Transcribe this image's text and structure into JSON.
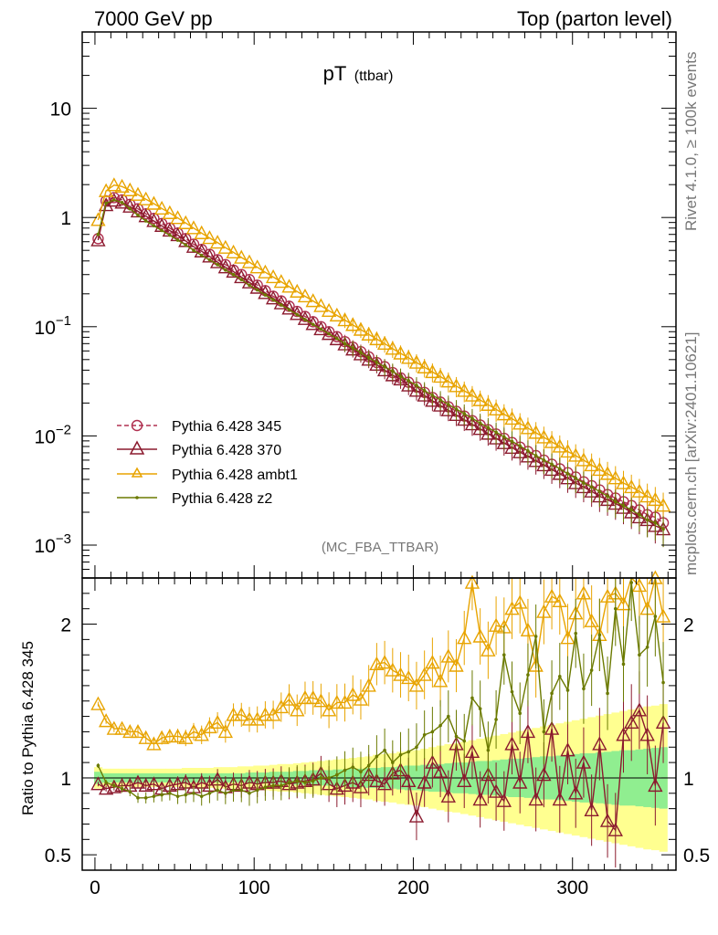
{
  "header": {
    "energy_label": "7000 GeV pp",
    "process_label": "Top (parton level)",
    "side_top": "Rivet 4.1.0, ≥ 100k events",
    "side_bottom": "mcplots.cern.ch [arXiv:2401.10621]"
  },
  "chart_data": {
    "type": "line",
    "title_main": "pT",
    "title_sub": "(ttbar)",
    "analysis_label": "(MC_FBA_TTBAR)",
    "xlim": [
      -8,
      365
    ],
    "x_ticks": [
      "0",
      "100",
      "200",
      "300"
    ],
    "main_panel": {
      "yscale": "log",
      "ylim": [
        0.0005,
        50
      ],
      "y_ticks": [
        {
          "base": "10",
          "exp": "−3"
        },
        {
          "base": "10",
          "exp": "−2"
        },
        {
          "base": "10",
          "exp": "−1"
        },
        {
          "base": "1",
          "exp": ""
        },
        {
          "base": "10",
          "exp": ""
        }
      ],
      "x": [
        2,
        7,
        12,
        17,
        22,
        27,
        32,
        37,
        42,
        47,
        52,
        57,
        62,
        67,
        72,
        77,
        82,
        87,
        92,
        97,
        102,
        107,
        112,
        117,
        122,
        127,
        132,
        137,
        142,
        147,
        152,
        157,
        162,
        167,
        172,
        177,
        182,
        187,
        192,
        197,
        202,
        207,
        212,
        217,
        222,
        227,
        232,
        237,
        242,
        247,
        252,
        257,
        262,
        267,
        272,
        277,
        282,
        287,
        292,
        297,
        302,
        307,
        312,
        317,
        322,
        327,
        332,
        337,
        342,
        347,
        352,
        357
      ],
      "series": [
        {
          "name": "Pythia 6.428 345",
          "color": "#b03050",
          "marker": "circle",
          "dashed": true,
          "values": [
            0.64,
            1.42,
            1.52,
            1.45,
            1.32,
            1.2,
            1.08,
            0.98,
            0.88,
            0.8,
            0.72,
            0.64,
            0.57,
            0.51,
            0.46,
            0.41,
            0.37,
            0.33,
            0.3,
            0.27,
            0.24,
            0.214,
            0.19,
            0.172,
            0.154,
            0.138,
            0.124,
            0.111,
            0.1,
            0.09,
            0.081,
            0.073,
            0.065,
            0.059,
            0.053,
            0.047,
            0.043,
            0.038,
            0.034,
            0.031,
            0.028,
            0.025,
            0.0225,
            0.0204,
            0.0185,
            0.0168,
            0.0152,
            0.0138,
            0.0126,
            0.0114,
            0.0104,
            0.0095,
            0.0087,
            0.0079,
            0.0072,
            0.0066,
            0.006,
            0.0055,
            0.005,
            0.0046,
            0.0042,
            0.0038,
            0.0035,
            0.0032,
            0.0029,
            0.0027,
            0.0025,
            0.0023,
            0.0021,
            0.0019,
            0.0018,
            0.0016
          ]
        },
        {
          "name": "Pythia 6.428 370",
          "color": "#8b1a2e",
          "marker": "triangle",
          "dashed": false,
          "values": [
            0.62,
            1.3,
            1.43,
            1.37,
            1.26,
            1.14,
            1.03,
            0.93,
            0.84,
            0.76,
            0.69,
            0.61,
            0.54,
            0.49,
            0.44,
            0.39,
            0.35,
            0.32,
            0.285,
            0.255,
            0.228,
            0.204,
            0.182,
            0.164,
            0.147,
            0.131,
            0.118,
            0.106,
            0.095,
            0.086,
            0.077,
            0.069,
            0.062,
            0.056,
            0.05,
            0.045,
            0.04,
            0.036,
            0.033,
            0.029,
            0.026,
            0.0235,
            0.021,
            0.019,
            0.0172,
            0.0156,
            0.0141,
            0.0128,
            0.0116,
            0.0105,
            0.0095,
            0.0086,
            0.0078,
            0.0071,
            0.0065,
            0.0059,
            0.0054,
            0.0049,
            0.0045,
            0.0041,
            0.0037,
            0.0034,
            0.0031,
            0.0028,
            0.0026,
            0.0024,
            0.0022,
            0.002,
            0.0018,
            0.0017,
            0.0015,
            0.0014
          ]
        },
        {
          "name": "Pythia 6.428 ambt1",
          "color": "#e8a400",
          "marker": "triangle",
          "dashed": false,
          "values": [
            0.95,
            1.75,
            1.98,
            1.92,
            1.78,
            1.62,
            1.47,
            1.34,
            1.21,
            1.1,
            0.99,
            0.89,
            0.8,
            0.72,
            0.65,
            0.59,
            0.53,
            0.48,
            0.43,
            0.39,
            0.35,
            0.315,
            0.285,
            0.258,
            0.233,
            0.21,
            0.19,
            0.172,
            0.155,
            0.14,
            0.127,
            0.115,
            0.104,
            0.094,
            0.085,
            0.077,
            0.07,
            0.063,
            0.057,
            0.052,
            0.047,
            0.0425,
            0.0385,
            0.0349,
            0.0316,
            0.0286,
            0.0259,
            0.0235,
            0.0213,
            0.0193,
            0.0175,
            0.0158,
            0.0144,
            0.013,
            0.0118,
            0.0107,
            0.0097,
            0.0088,
            0.008,
            0.0072,
            0.0066,
            0.006,
            0.0054,
            0.0049,
            0.0045,
            0.0041,
            0.0037,
            0.0034,
            0.0031,
            0.0028,
            0.0026,
            0.0023
          ]
        },
        {
          "name": "Pythia 6.428 z2",
          "color": "#6b7a00",
          "marker": "dot",
          "dashed": false,
          "values": [
            0.7,
            1.35,
            1.45,
            1.37,
            1.2,
            1.05,
            0.93,
            0.84,
            0.76,
            0.69,
            0.62,
            0.56,
            0.5,
            0.45,
            0.41,
            0.37,
            0.33,
            0.3,
            0.27,
            0.24,
            0.217,
            0.195,
            0.176,
            0.158,
            0.143,
            0.129,
            0.116,
            0.105,
            0.095,
            0.086,
            0.078,
            0.07,
            0.064,
            0.058,
            0.052,
            0.047,
            0.043,
            0.039,
            0.035,
            0.032,
            0.029,
            0.026,
            0.0236,
            0.0214,
            0.0194,
            0.0176,
            0.016,
            0.0145,
            0.0131,
            0.0119,
            0.0108,
            0.0098,
            0.0089,
            0.0081,
            0.0073,
            0.0066,
            0.006,
            0.0055,
            0.005,
            0.0045,
            0.0041,
            0.0037,
            0.0034,
            0.0031,
            0.0028,
            0.0025,
            0.0023,
            0.0021,
            0.0019,
            0.0017,
            0.0016,
            0.0014
          ]
        }
      ]
    },
    "ratio_panel": {
      "ylabel": "Ratio to Pythia 6.428 345",
      "ylim": [
        0.4,
        2.3
      ],
      "y_ticks": [
        "0.5",
        "1",
        "2"
      ],
      "band_inner": [
        0.04,
        0.03,
        0.03,
        0.03,
        0.03,
        0.03,
        0.03,
        0.03,
        0.03,
        0.03,
        0.03,
        0.03,
        0.03,
        0.03,
        0.03,
        0.03,
        0.03,
        0.03,
        0.03,
        0.035,
        0.035,
        0.035,
        0.04,
        0.04,
        0.04,
        0.045,
        0.045,
        0.05,
        0.05,
        0.05,
        0.055,
        0.055,
        0.06,
        0.06,
        0.065,
        0.065,
        0.07,
        0.07,
        0.075,
        0.08,
        0.08,
        0.085,
        0.09,
        0.09,
        0.095,
        0.1,
        0.1,
        0.105,
        0.11,
        0.11,
        0.115,
        0.12,
        0.125,
        0.125,
        0.13,
        0.135,
        0.14,
        0.14,
        0.145,
        0.15,
        0.155,
        0.16,
        0.16,
        0.165,
        0.17,
        0.175,
        0.18,
        0.18,
        0.185,
        0.19,
        0.195,
        0.2
      ],
      "band_outer": [
        0.07,
        0.06,
        0.06,
        0.06,
        0.06,
        0.06,
        0.06,
        0.06,
        0.06,
        0.06,
        0.06,
        0.065,
        0.065,
        0.065,
        0.065,
        0.07,
        0.07,
        0.07,
        0.075,
        0.075,
        0.08,
        0.08,
        0.085,
        0.09,
        0.09,
        0.095,
        0.1,
        0.105,
        0.11,
        0.115,
        0.12,
        0.125,
        0.13,
        0.135,
        0.14,
        0.15,
        0.155,
        0.16,
        0.17,
        0.175,
        0.18,
        0.19,
        0.2,
        0.21,
        0.22,
        0.225,
        0.235,
        0.245,
        0.255,
        0.265,
        0.275,
        0.285,
        0.295,
        0.305,
        0.315,
        0.325,
        0.335,
        0.345,
        0.355,
        0.365,
        0.375,
        0.385,
        0.395,
        0.405,
        0.415,
        0.425,
        0.435,
        0.445,
        0.455,
        0.465,
        0.47,
        0.48
      ],
      "series": [
        {
          "name": "Pythia 6.428 370",
          "color": "#8b1a2e",
          "marker": "triangle",
          "values": [
            0.96,
            0.93,
            0.94,
            0.95,
            0.95,
            0.97,
            0.95,
            0.96,
            0.93,
            0.95,
            0.96,
            0.97,
            0.94,
            0.97,
            0.95,
            0.99,
            0.94,
            0.96,
            0.95,
            0.97,
            0.96,
            0.97,
            0.97,
            0.98,
            0.96,
            0.97,
            0.98,
            0.99,
            1.03,
            0.96,
            0.93,
            0.95,
            0.97,
            0.94,
            1.02,
            0.98,
            0.96,
            1.03,
            1.05,
            0.98,
            0.75,
            0.97,
            1.1,
            1.04,
            0.88,
            1.22,
            0.98,
            1.17,
            0.86,
            1.02,
            0.91,
            0.85,
            1.22,
            0.97,
            1.3,
            0.86,
            1.02,
            1.32,
            0.86,
            1.18,
            0.9,
            1.1,
            0.79,
            1.22,
            0.72,
            0.66,
            1.28,
            1.36,
            1.44,
            1.28,
            0.95,
            1.36
          ]
        },
        {
          "name": "Pythia 6.428 ambt1",
          "color": "#e8a400",
          "marker": "triangle",
          "values": [
            1.48,
            1.37,
            1.32,
            1.32,
            1.3,
            1.3,
            1.26,
            1.22,
            1.26,
            1.27,
            1.27,
            1.26,
            1.3,
            1.28,
            1.33,
            1.36,
            1.3,
            1.41,
            1.41,
            1.38,
            1.38,
            1.41,
            1.41,
            1.46,
            1.51,
            1.44,
            1.52,
            1.52,
            1.5,
            1.44,
            1.49,
            1.49,
            1.54,
            1.51,
            1.6,
            1.74,
            1.75,
            1.7,
            1.67,
            1.65,
            1.6,
            1.67,
            1.75,
            1.63,
            1.79,
            1.73,
            1.91,
            2.27,
            1.92,
            1.83,
            1.99,
            1.98,
            2.1,
            2.14,
            1.96,
            1.73,
            2.08,
            2.18,
            2.15,
            1.91,
            2.07,
            2.2,
            2.02,
            1.93,
            2.18,
            2.2,
            2.13,
            2.35,
            2.25,
            2.1,
            2.3,
            2.05
          ]
        },
        {
          "name": "Pythia 6.428 z2",
          "color": "#6b7a00",
          "marker": "dot",
          "values": [
            1.08,
            0.97,
            0.95,
            0.93,
            0.91,
            0.87,
            0.87,
            0.88,
            0.89,
            0.9,
            0.88,
            0.89,
            0.9,
            0.88,
            0.9,
            0.92,
            0.9,
            0.92,
            0.92,
            0.9,
            0.92,
            0.94,
            0.95,
            0.95,
            0.97,
            0.98,
            0.97,
            0.98,
            1.0,
            1.0,
            1.02,
            1.05,
            1.07,
            1.04,
            1.08,
            1.14,
            1.18,
            1.1,
            1.15,
            1.17,
            1.2,
            1.28,
            1.3,
            1.34,
            1.4,
            1.27,
            1.24,
            1.52,
            1.45,
            1.18,
            1.38,
            1.8,
            1.56,
            1.42,
            1.67,
            1.92,
            1.3,
            1.55,
            1.66,
            1.57,
            1.94,
            1.58,
            1.7,
            1.93,
            1.55,
            2.1,
            1.74,
            2.27,
            1.8,
            1.85,
            2.05,
            1.62
          ]
        }
      ]
    }
  }
}
